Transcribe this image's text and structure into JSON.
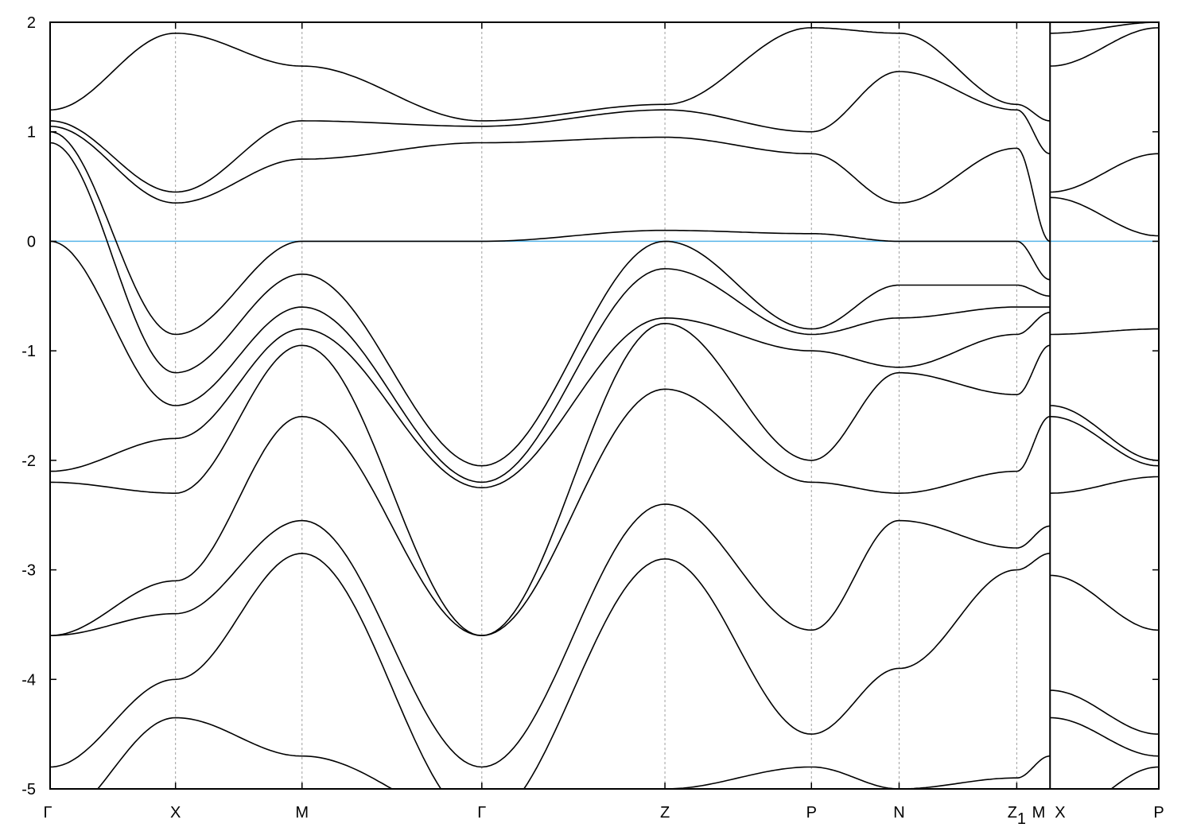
{
  "chart_data": {
    "type": "line",
    "title": "",
    "xlabel": "",
    "ylabel": "",
    "ylim": [
      -5,
      2
    ],
    "yticks": [
      "-5",
      "-4",
      "-3",
      "-2",
      "-1",
      "0",
      "1",
      "2"
    ],
    "grid": "vertical dashed lines at high-symmetry points",
    "fermi_level": 0,
    "colors": {
      "bands": "#000000",
      "fermi_line": "#56b4e9",
      "grid": "#a0a0a0"
    },
    "panels": [
      {
        "k_labels": [
          "Γ",
          "X",
          "M",
          "Γ",
          "Z",
          "P",
          "N",
          "Z1",
          "M"
        ],
        "k": [
          0,
          1.13,
          2.27,
          3.89,
          5.54,
          6.86,
          7.65,
          8.71,
          9.01
        ],
        "bands": [
          [
            1.2,
            1.9,
            1.6,
            1.1,
            1.25,
            1.95,
            1.9,
            1.25,
            1.1
          ],
          [
            1.1,
            0.45,
            1.1,
            1.05,
            1.2,
            1.0,
            1.55,
            1.2,
            0.8
          ],
          [
            1.05,
            0.35,
            0.75,
            0.9,
            0.95,
            0.8,
            0.35,
            0.85,
            0.0
          ],
          [
            1.0,
            -0.85,
            0.0,
            0.0,
            0.1,
            0.07,
            0.0,
            0.0,
            -0.35
          ],
          [
            0.9,
            -1.2,
            -0.3,
            -2.05,
            0.0,
            -0.8,
            -0.4,
            -0.4,
            -0.5
          ],
          [
            0.0,
            -1.5,
            -0.6,
            -2.2,
            -0.25,
            -0.85,
            -0.7,
            -0.6,
            -0.6
          ],
          [
            -2.1,
            -1.8,
            -0.8,
            -2.25,
            -0.7,
            -1.0,
            -1.15,
            -0.85,
            -0.65
          ],
          [
            -2.2,
            -2.3,
            -0.95,
            -3.6,
            -0.75,
            -2.0,
            -1.2,
            -1.4,
            -0.95
          ],
          [
            -3.6,
            -3.1,
            -1.6,
            -3.6,
            -1.35,
            -2.2,
            -2.3,
            -2.1,
            -1.6
          ],
          [
            -3.6,
            -3.4,
            -2.55,
            -4.8,
            -2.4,
            -3.55,
            -2.55,
            -2.8,
            -2.6
          ],
          [
            -4.8,
            -4.0,
            -2.85,
            -5.3,
            -2.9,
            -4.5,
            -3.9,
            -3.0,
            -2.85
          ],
          [
            -5.3,
            -4.35,
            -4.7,
            -5.3,
            -5.0,
            -4.8,
            -5.0,
            -4.9,
            -4.7
          ]
        ]
      },
      {
        "k_labels": [
          "X",
          "P"
        ],
        "k": [
          9.01,
          9.99
        ],
        "bands": [
          [
            1.9,
            2.0
          ],
          [
            1.6,
            1.95
          ],
          [
            0.45,
            0.8
          ],
          [
            0.4,
            0.05
          ],
          [
            -0.85,
            -0.8
          ],
          [
            -1.5,
            -2.0
          ],
          [
            -1.6,
            -2.05
          ],
          [
            -2.3,
            -2.15
          ],
          [
            -3.05,
            -3.55
          ],
          [
            -4.1,
            -4.5
          ],
          [
            -4.35,
            -4.7
          ],
          [
            -5.3,
            -4.8
          ]
        ]
      }
    ]
  }
}
